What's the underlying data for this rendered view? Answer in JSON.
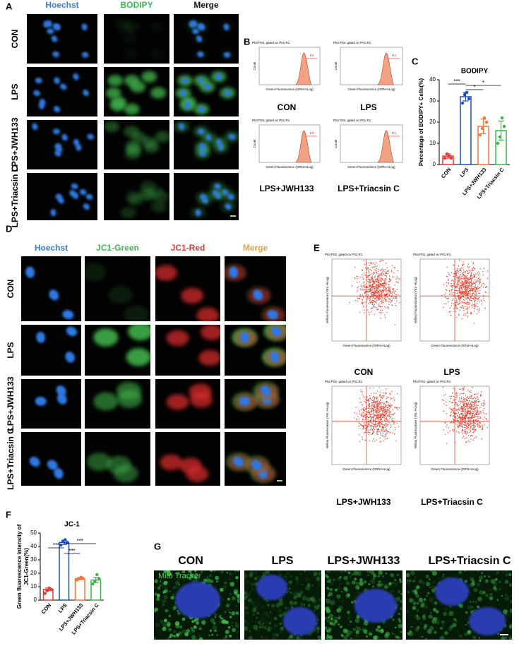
{
  "panel_labels": [
    "A",
    "B",
    "C",
    "D",
    "E",
    "F",
    "G"
  ],
  "panel_a": {
    "columns": [
      "Hoechst",
      "BODIPY",
      "Merge"
    ],
    "rows": [
      "CON",
      "LPS",
      "LPS+JWH133",
      "LPS+Triacsin C"
    ]
  },
  "panel_b": {
    "plot_title": "Plot P03, gated on P01.R1",
    "y_label": "Count",
    "x_label": "Green Fluorescence (GRN-HLog)",
    "gate": "R3",
    "captions": [
      "CON",
      "LPS",
      "LPS+JWH133",
      "LPS+Triacsin C"
    ]
  },
  "panel_d": {
    "columns": [
      "Hoechst",
      "JC1-Green",
      "JC1-Red",
      "Merge"
    ],
    "rows": [
      "CON",
      "LPS",
      "LPS+JWH133",
      "LPS+Triacsin C"
    ]
  },
  "panel_e": {
    "plot_title": "Plot P02, gated on P01.R1",
    "y_label": "Yellow Fluorescence (YEL-HLog)",
    "x_label": "Green Fluorescence (GRN-HLog)",
    "captions": [
      "CON",
      "LPS",
      "LPS+JWH133",
      "LPS+Triacsin C"
    ]
  },
  "panel_g": {
    "columns": [
      "CON",
      "LPS",
      "LPS+JWH133",
      "LPS+Triacsin C"
    ],
    "stain": "Mito Tracker"
  },
  "chart_data": [
    {
      "type": "bar",
      "title": "BODIPY",
      "y_label": [
        "Percentage of BODIPY+ Cells(%)"
      ],
      "categories": [
        "CON",
        "LPS",
        "LPS+JWH133",
        "LPS+Triacsin C"
      ],
      "values": [
        4,
        32,
        18,
        16
      ],
      "errors": [
        1,
        2,
        3.5,
        4.5
      ],
      "points": [
        [
          3,
          5,
          4,
          3
        ],
        [
          29,
          33,
          34,
          31
        ],
        [
          14,
          17,
          22,
          20
        ],
        [
          10,
          13,
          22,
          18
        ]
      ],
      "colors": [
        "#e53935",
        "#1e4fc2",
        "#f4743b",
        "#3cb54a"
      ],
      "significance": [
        "***",
        "*",
        "*"
      ],
      "ylim": [
        0,
        40
      ],
      "yticks": [
        0,
        10,
        20,
        30,
        40
      ]
    },
    {
      "type": "bar",
      "title": "JC-1",
      "y_label": [
        "Green fluorescence intensity of",
        "JC1-Green(%)"
      ],
      "categories": [
        "CON",
        "LPS",
        "LPS+JWH133",
        "LPS+Triacsin C"
      ],
      "values": [
        8,
        43,
        16,
        15
      ],
      "errors": [
        1,
        1.5,
        0.8,
        2
      ],
      "points": [
        [
          5,
          7,
          9,
          8
        ],
        [
          41,
          44,
          45,
          43
        ],
        [
          15,
          16,
          17,
          16
        ],
        [
          12,
          14,
          19,
          16
        ]
      ],
      "colors": [
        "#e53935",
        "#1e4fc2",
        "#f4743b",
        "#3cb54a"
      ],
      "significance": [
        "***",
        "***",
        "***"
      ],
      "ylim": [
        0,
        50
      ],
      "yticks": [
        0,
        10,
        20,
        30,
        40,
        50
      ]
    }
  ]
}
